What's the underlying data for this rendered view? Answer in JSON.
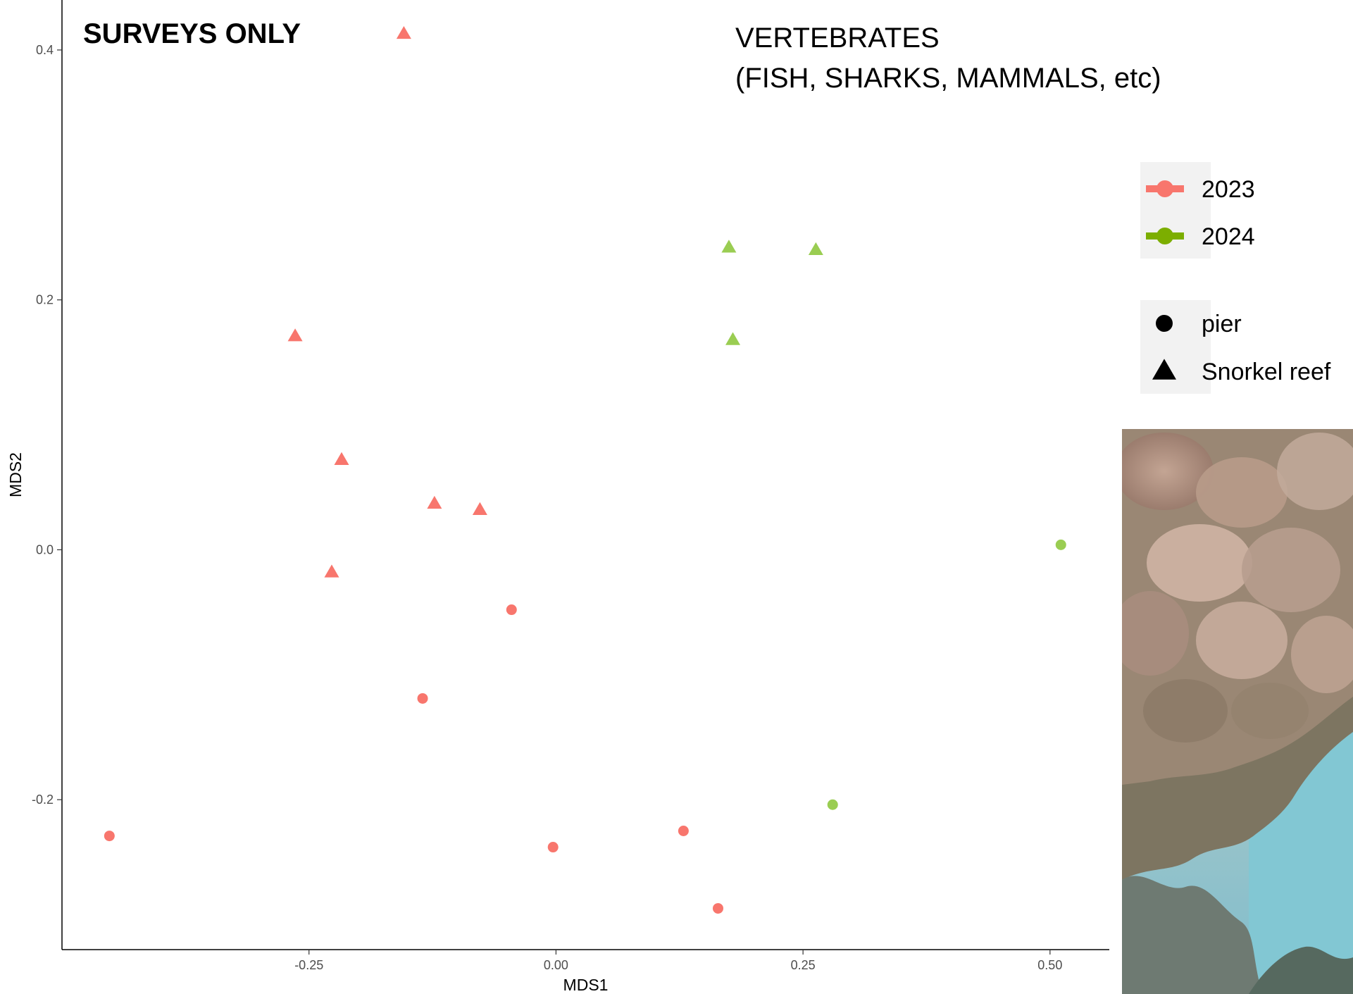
{
  "annotations": {
    "heading": "SURVEYS ONLY",
    "group_line1": "VERTEBRATES",
    "group_line2": "(FISH, SHARKS, MAMMALS, etc)"
  },
  "photo": {
    "description_icon": "underwater-reef-photo"
  },
  "chart_data": {
    "type": "scatter",
    "title": "",
    "xlabel": "MDS1",
    "ylabel": "MDS2",
    "xlim": [
      -0.5,
      0.56
    ],
    "ylim": [
      -0.32,
      0.44
    ],
    "x_ticks": [
      -0.25,
      0.0,
      0.25,
      0.5
    ],
    "x_tick_labels": [
      "-0.25",
      "0.00",
      "0.25",
      "0.50"
    ],
    "y_ticks": [
      -0.2,
      0.0,
      0.2,
      0.4
    ],
    "y_tick_labels": [
      "-0.2",
      "0.0",
      "0.2",
      "0.4"
    ],
    "grid": false,
    "legend_position": "right",
    "color_legend": [
      {
        "label": "2023",
        "color": "#F8766D"
      },
      {
        "label": "2024",
        "color": "#7CAE00"
      }
    ],
    "shape_legend": [
      {
        "label": "pier",
        "shape": "circle"
      },
      {
        "label": "Snorkel reef",
        "shape": "triangle"
      }
    ],
    "series": [
      {
        "name": "2023",
        "shape": "triangle",
        "site": "Snorkel reef",
        "color": "#F8766D",
        "points": [
          [
            -0.154,
            0.413
          ],
          [
            -0.264,
            0.171
          ],
          [
            -0.217,
            0.072
          ],
          [
            -0.123,
            0.037
          ],
          [
            -0.077,
            0.032
          ],
          [
            -0.227,
            -0.018
          ]
        ]
      },
      {
        "name": "2023",
        "shape": "circle",
        "site": "pier",
        "color": "#F8766D",
        "points": [
          [
            -0.045,
            -0.048
          ],
          [
            -0.135,
            -0.119
          ],
          [
            -0.452,
            -0.229
          ],
          [
            -0.003,
            -0.238
          ],
          [
            0.129,
            -0.225
          ],
          [
            0.164,
            -0.287
          ]
        ]
      },
      {
        "name": "2024",
        "shape": "triangle",
        "site": "Snorkel reef",
        "color": "#9ACD52",
        "points": [
          [
            0.175,
            0.242
          ],
          [
            0.263,
            0.24
          ],
          [
            0.179,
            0.168
          ]
        ]
      },
      {
        "name": "2024",
        "shape": "circle",
        "site": "pier",
        "color": "#9ACD52",
        "points": [
          [
            0.511,
            0.004
          ],
          [
            0.28,
            -0.204
          ]
        ]
      }
    ]
  }
}
